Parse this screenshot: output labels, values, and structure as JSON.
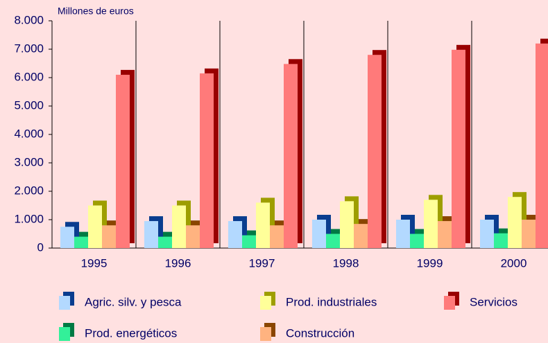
{
  "chart_data": {
    "type": "bar3d",
    "y_axis_label": "Millones de euros",
    "categories": [
      "1995",
      "1996",
      "1997",
      "1998",
      "1999",
      "2000"
    ],
    "series": [
      {
        "name": "Agric. silv. y pesca",
        "color": "#b3d9ff",
        "depth_color": "#0a3d8f",
        "values": [
          750,
          950,
          950,
          1000,
          1000,
          1000
        ]
      },
      {
        "name": "Prod. energéticos",
        "color": "#33f099",
        "depth_color": "#007a44",
        "values": [
          400,
          400,
          450,
          500,
          500,
          520
        ]
      },
      {
        "name": "Prod. industriales",
        "color": "#ffff99",
        "depth_color": "#9e9e00",
        "values": [
          1500,
          1500,
          1600,
          1650,
          1700,
          1800
        ]
      },
      {
        "name": "Construcción",
        "color": "#ffb380",
        "depth_color": "#8a4500",
        "values": [
          800,
          800,
          800,
          850,
          950,
          1000
        ]
      },
      {
        "name": "Servicios",
        "color": "#ff7a7a",
        "depth_color": "#990000",
        "values": [
          6100,
          6150,
          6480,
          6800,
          6980,
          7200
        ]
      }
    ],
    "ylim": [
      0,
      8000
    ],
    "yticks": [
      0,
      {
        "value": 1000,
        "label": "1.000"
      },
      {
        "value": 2000,
        "label": "2.000"
      },
      {
        "value": 3000,
        "label": "3.000"
      },
      {
        "value": 4000,
        "label": "4.000"
      },
      {
        "value": 5000,
        "label": "5.000"
      },
      {
        "value": 6000,
        "label": "6.000"
      },
      {
        "value": 7000,
        "label": "7.000"
      },
      {
        "value": 8000,
        "label": "8.000"
      }
    ],
    "grid": true
  }
}
